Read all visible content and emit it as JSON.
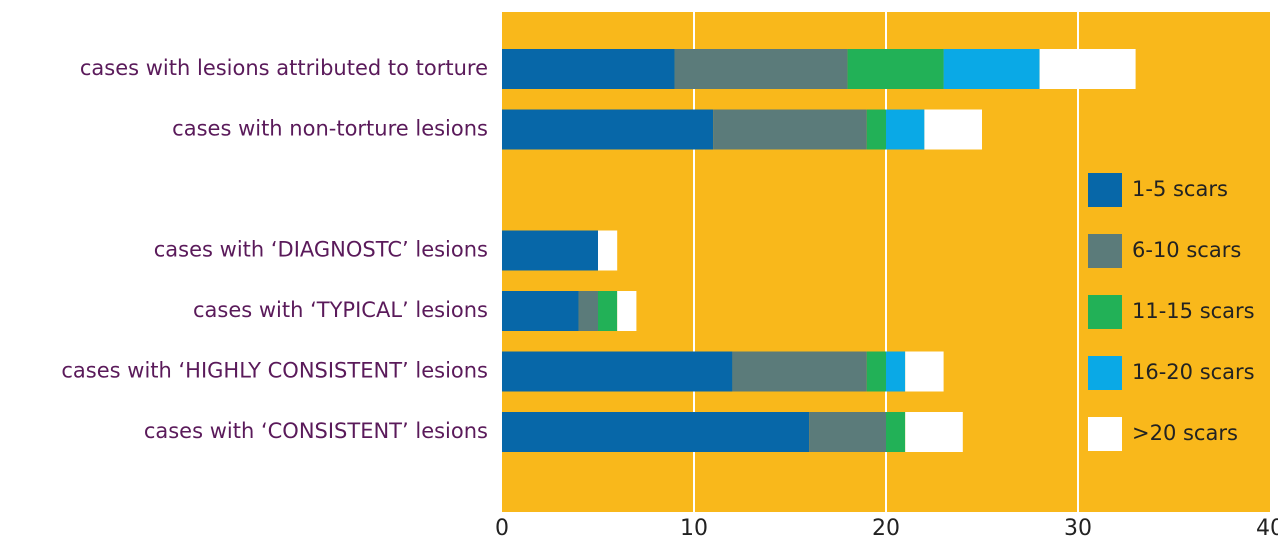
{
  "chart_data": {
    "type": "bar",
    "orientation": "horizontal",
    "stacked": true,
    "categories": [
      "cases with lesions attributed to torture",
      "cases with non-torture lesions",
      null,
      "cases with ‘DIAGNOSTC’ lesions",
      "cases with ‘TYPICAL’ lesions",
      "cases with ‘HIGHLY CONSISTENT’ lesions",
      "cases with ‘CONSISTENT’ lesions"
    ],
    "series": [
      {
        "name": "1-5 scars",
        "color": "#0767a8",
        "values": [
          9,
          11,
          null,
          5,
          4,
          12,
          16
        ]
      },
      {
        "name": "6-10 scars",
        "color": "#5b7b7a",
        "values": [
          9,
          8,
          null,
          0,
          1,
          7,
          4
        ]
      },
      {
        "name": "11-15 scars",
        "color": "#22b157",
        "values": [
          5,
          1,
          null,
          0,
          1,
          1,
          1
        ]
      },
      {
        "name": "16-20 scars",
        "color": "#0aa9e6",
        "values": [
          5,
          2,
          null,
          0,
          0,
          1,
          0
        ]
      },
      {
        "name": ">20 scars",
        "color": "#ffffff",
        "values": [
          5,
          3,
          null,
          1,
          1,
          2,
          3
        ]
      }
    ],
    "xlim": [
      0,
      40
    ],
    "xticks": [
      0,
      10,
      20,
      30,
      40
    ],
    "grid": true,
    "legend": "right",
    "background": "#f9b81b"
  }
}
